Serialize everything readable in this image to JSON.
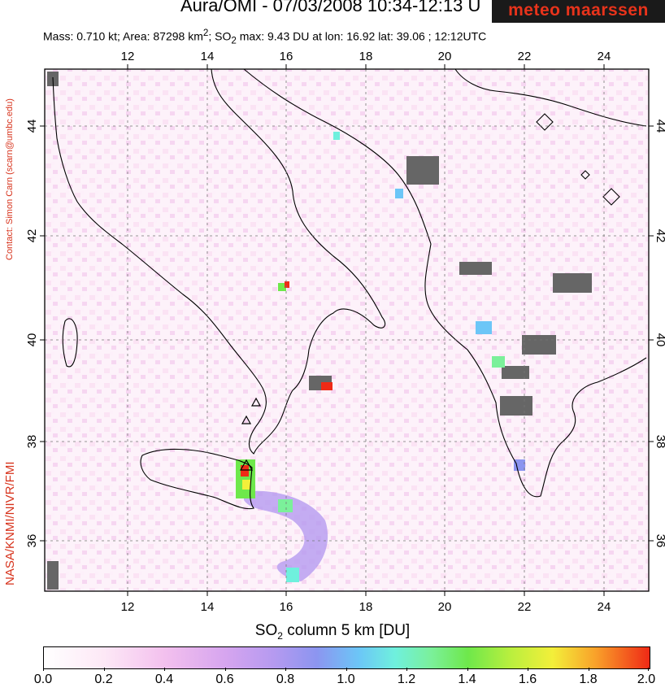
{
  "header": {
    "title": "Aura/OMI - 07/03/2008 10:34-12:13 U",
    "subtitle_prefix": "Mass: 0.710 kt; Area: 87298 km",
    "subtitle_sup": "2",
    "subtitle_mid": "; SO",
    "subtitle_sub": "2",
    "subtitle_suffix": " max: 9.43 DU at lon: 16.92 lat: 39.06 ; 12:12UTC",
    "logo_text": "meteo maarssen"
  },
  "side": {
    "contact": "Contact: Simon Carn (scarn@umbc.edu)",
    "credit": "NASA/KNMI/NIVR/FMI"
  },
  "map": {
    "lon_labels": [
      "12",
      "14",
      "16",
      "18",
      "20",
      "22",
      "24"
    ],
    "lat_labels": [
      "36",
      "38",
      "40",
      "42",
      "44"
    ],
    "colors": {
      "land_outline": "#000000",
      "gridline": "#777777",
      "no_data": "#666666"
    }
  },
  "colorbar": {
    "title_prefix": "SO",
    "title_sub": "2",
    "title_suffix": " column 5 km [DU]",
    "ticks": [
      "0.0",
      "0.2",
      "0.4",
      "0.6",
      "0.8",
      "1.0",
      "1.2",
      "1.4",
      "1.6",
      "1.8",
      "2.0"
    ]
  }
}
